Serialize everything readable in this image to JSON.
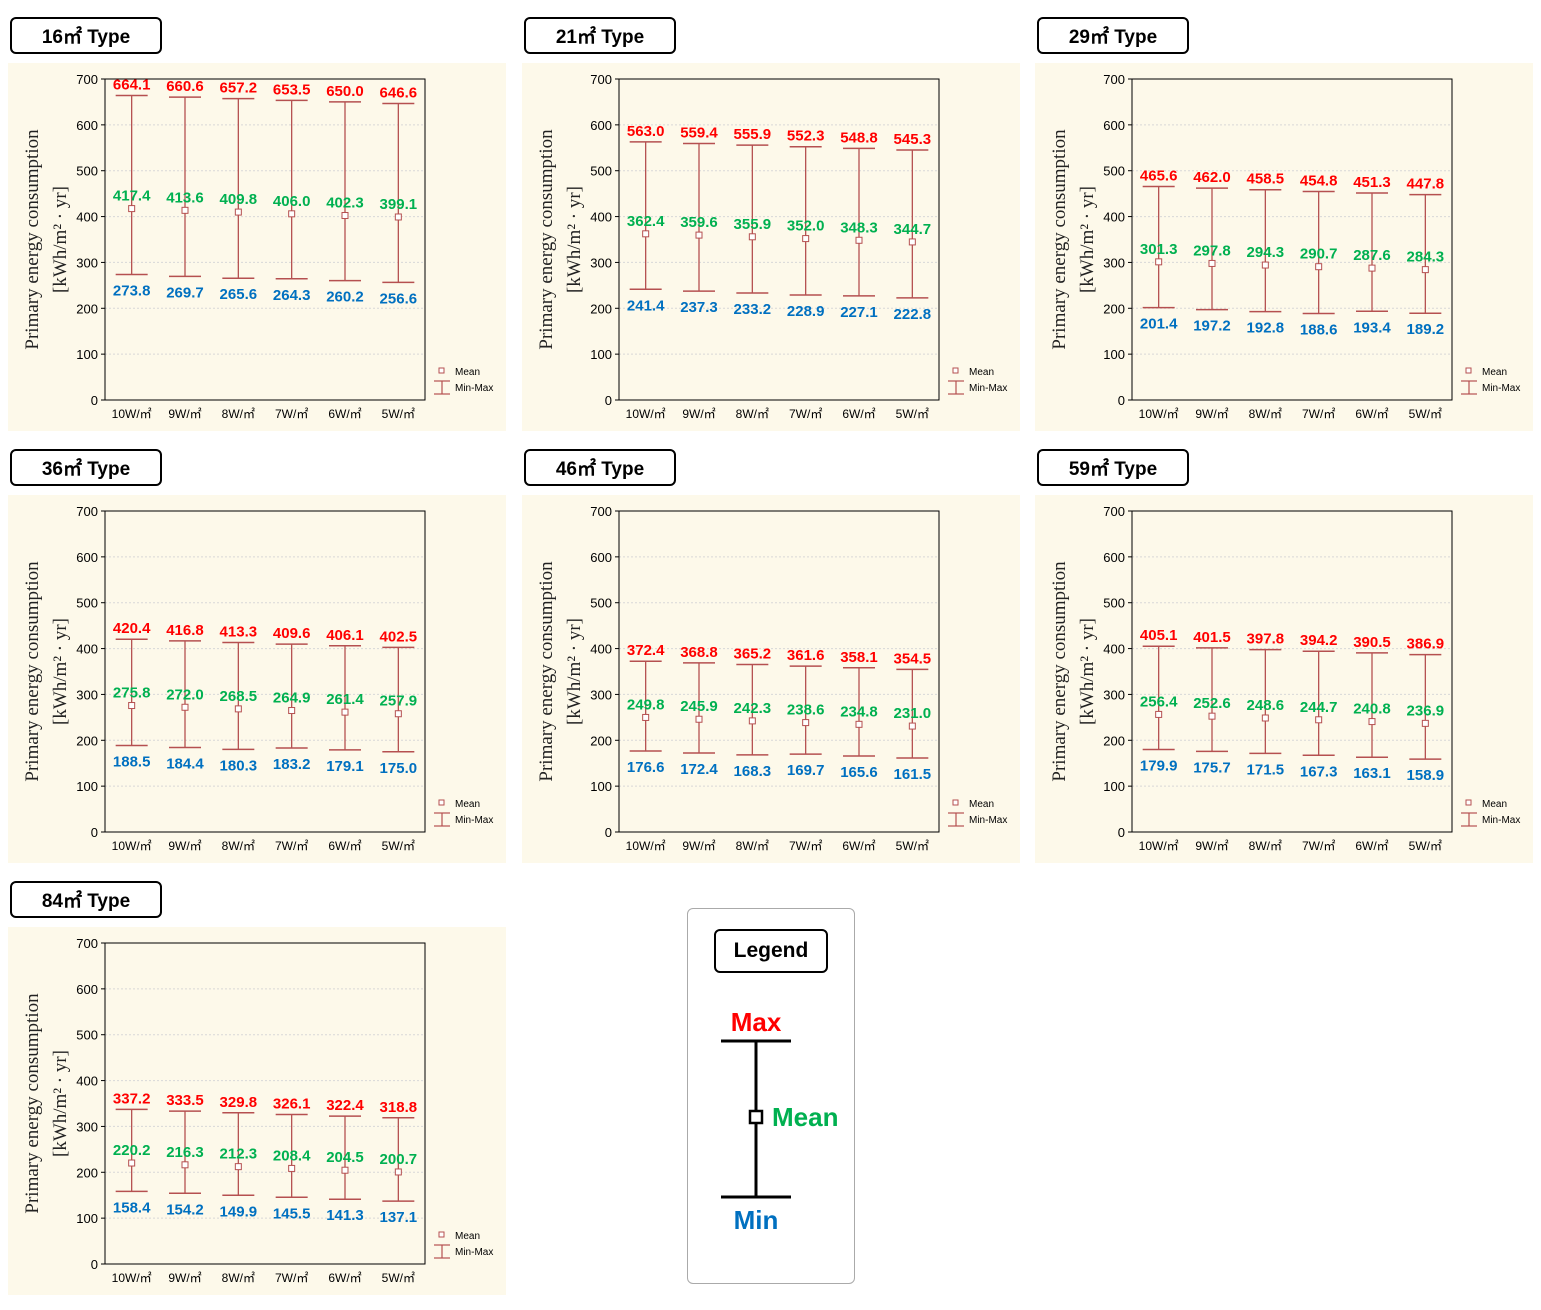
{
  "ylabel_line1": "Primary energy consumption",
  "ylabel_line2": "[kWh/m² · yr]",
  "legend_small": {
    "mean": "Mean",
    "minmax": "Min-Max"
  },
  "colors": {
    "max": "#ff0000",
    "mean": "#00b050",
    "min": "#0070c0",
    "bar": "#b55050",
    "panel_bg": "#fdf9ea"
  },
  "big_legend": {
    "title": "Legend",
    "max": "Max",
    "mean": "Mean",
    "min": "Min"
  },
  "chart_data": [
    {
      "type": "error-bar",
      "title": "16㎡ Type",
      "categories": [
        "10W/㎡",
        "9W/㎡",
        "8W/㎡",
        "7W/㎡",
        "6W/㎡",
        "5W/㎡"
      ],
      "ylim": [
        0,
        700
      ],
      "yticks": [
        0,
        100,
        200,
        300,
        400,
        500,
        600,
        700
      ],
      "max": [
        664.1,
        660.6,
        657.2,
        653.5,
        650.0,
        646.6
      ],
      "mean": [
        417.4,
        413.6,
        409.8,
        406.0,
        402.3,
        399.1
      ],
      "min": [
        273.8,
        269.7,
        265.6,
        264.3,
        260.2,
        256.6
      ]
    },
    {
      "type": "error-bar",
      "title": "21㎡ Type",
      "categories": [
        "10W/㎡",
        "9W/㎡",
        "8W/㎡",
        "7W/㎡",
        "6W/㎡",
        "5W/㎡"
      ],
      "ylim": [
        0,
        700
      ],
      "yticks": [
        0,
        100,
        200,
        300,
        400,
        500,
        600,
        700
      ],
      "max": [
        563.0,
        559.4,
        555.9,
        552.3,
        548.8,
        545.3
      ],
      "mean": [
        362.4,
        359.6,
        355.9,
        352.0,
        348.3,
        344.7
      ],
      "min": [
        241.4,
        237.3,
        233.2,
        228.9,
        227.1,
        222.8
      ]
    },
    {
      "type": "error-bar",
      "title": "29㎡ Type",
      "categories": [
        "10W/㎡",
        "9W/㎡",
        "8W/㎡",
        "7W/㎡",
        "6W/㎡",
        "5W/㎡"
      ],
      "ylim": [
        0,
        700
      ],
      "yticks": [
        0,
        100,
        200,
        300,
        400,
        500,
        600,
        700
      ],
      "max": [
        465.6,
        462.0,
        458.5,
        454.8,
        451.3,
        447.8
      ],
      "mean": [
        301.3,
        297.8,
        294.3,
        290.7,
        287.6,
        284.3
      ],
      "min": [
        201.4,
        197.2,
        192.8,
        188.6,
        193.4,
        189.2
      ]
    },
    {
      "type": "error-bar",
      "title": "36㎡ Type",
      "categories": [
        "10W/㎡",
        "9W/㎡",
        "8W/㎡",
        "7W/㎡",
        "6W/㎡",
        "5W/㎡"
      ],
      "ylim": [
        0,
        700
      ],
      "yticks": [
        0,
        100,
        200,
        300,
        400,
        500,
        600,
        700
      ],
      "max": [
        420.4,
        416.8,
        413.3,
        409.6,
        406.1,
        402.5
      ],
      "mean": [
        275.8,
        272.0,
        268.5,
        264.9,
        261.4,
        257.9
      ],
      "min": [
        188.5,
        184.4,
        180.3,
        183.2,
        179.1,
        175.0
      ]
    },
    {
      "type": "error-bar",
      "title": "46㎡ Type",
      "categories": [
        "10W/㎡",
        "9W/㎡",
        "8W/㎡",
        "7W/㎡",
        "6W/㎡",
        "5W/㎡"
      ],
      "ylim": [
        0,
        700
      ],
      "yticks": [
        0,
        100,
        200,
        300,
        400,
        500,
        600,
        700
      ],
      "max": [
        372.4,
        368.8,
        365.2,
        361.6,
        358.1,
        354.5
      ],
      "mean": [
        249.8,
        245.9,
        242.3,
        238.6,
        234.8,
        231.0
      ],
      "min": [
        176.6,
        172.4,
        168.3,
        169.7,
        165.6,
        161.5
      ]
    },
    {
      "type": "error-bar",
      "title": "59㎡ Type",
      "categories": [
        "10W/㎡",
        "9W/㎡",
        "8W/㎡",
        "7W/㎡",
        "6W/㎡",
        "5W/㎡"
      ],
      "ylim": [
        0,
        700
      ],
      "yticks": [
        0,
        100,
        200,
        300,
        400,
        500,
        600,
        700
      ],
      "max": [
        405.1,
        401.5,
        397.8,
        394.2,
        390.5,
        386.9
      ],
      "mean": [
        256.4,
        252.6,
        248.6,
        244.7,
        240.8,
        236.9
      ],
      "min": [
        179.9,
        175.7,
        171.5,
        167.3,
        163.1,
        158.9
      ]
    },
    {
      "type": "error-bar",
      "title": "84㎡ Type",
      "categories": [
        "10W/㎡",
        "9W/㎡",
        "8W/㎡",
        "7W/㎡",
        "6W/㎡",
        "5W/㎡"
      ],
      "ylim": [
        0,
        700
      ],
      "yticks": [
        0,
        100,
        200,
        300,
        400,
        500,
        600,
        700
      ],
      "max": [
        337.2,
        333.5,
        329.8,
        326.1,
        322.4,
        318.8
      ],
      "mean": [
        220.2,
        216.3,
        212.3,
        208.4,
        204.5,
        200.7
      ],
      "min": [
        158.4,
        154.2,
        149.9,
        145.5,
        141.3,
        137.1
      ]
    }
  ]
}
